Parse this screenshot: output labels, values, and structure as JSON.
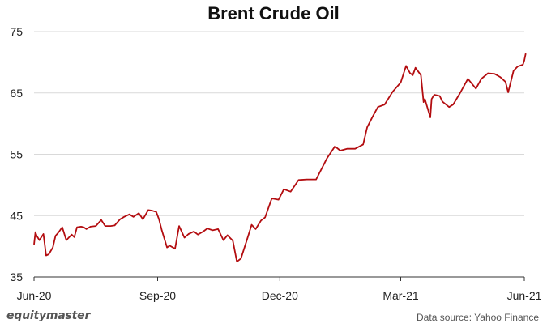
{
  "chart_data": {
    "type": "line",
    "title": "Brent Crude Oil",
    "xlabel": "",
    "ylabel": "",
    "x_ticks": [
      "Jun-20",
      "Sep-20",
      "Dec-20",
      "Mar-21",
      "Jun-21"
    ],
    "y_ticks": [
      35,
      45,
      55,
      65,
      75
    ],
    "ylim": [
      35,
      75
    ],
    "grid": "horizontal",
    "colors": {
      "line": "#b30d10",
      "grid": "#d9d9d9",
      "axis": "#333333"
    },
    "series": [
      {
        "name": "",
        "x": [
          "2020-06-01",
          "2020-06-02",
          "2020-06-03",
          "2020-06-05",
          "2020-06-08",
          "2020-06-10",
          "2020-06-12",
          "2020-06-15",
          "2020-06-17",
          "2020-06-19",
          "2020-06-22",
          "2020-06-25",
          "2020-06-29",
          "2020-07-01",
          "2020-07-03",
          "2020-07-06",
          "2020-07-08",
          "2020-07-10",
          "2020-07-13",
          "2020-07-17",
          "2020-07-21",
          "2020-07-24",
          "2020-07-28",
          "2020-07-31",
          "2020-08-04",
          "2020-08-07",
          "2020-08-11",
          "2020-08-14",
          "2020-08-18",
          "2020-08-21",
          "2020-08-25",
          "2020-08-28",
          "2020-08-31",
          "2020-09-02",
          "2020-09-04",
          "2020-09-08",
          "2020-09-10",
          "2020-09-14",
          "2020-09-17",
          "2020-09-21",
          "2020-09-24",
          "2020-09-28",
          "2020-10-01",
          "2020-10-05",
          "2020-10-08",
          "2020-10-12",
          "2020-10-16",
          "2020-10-20",
          "2020-10-23",
          "2020-10-27",
          "2020-10-30",
          "2020-11-02",
          "2020-11-06",
          "2020-11-10",
          "2020-11-13",
          "2020-11-17",
          "2020-11-20",
          "2020-11-25",
          "2020-11-30",
          "2020-12-04",
          "2020-12-09",
          "2020-12-15",
          "2020-12-21",
          "2020-12-28",
          "2021-01-05",
          "2021-01-11",
          "2021-01-15",
          "2021-01-20",
          "2021-01-26",
          "2021-02-01",
          "2021-02-04",
          "2021-02-08",
          "2021-02-12",
          "2021-02-17",
          "2021-02-23",
          "2021-03-01",
          "2021-03-05",
          "2021-03-08",
          "2021-03-10",
          "2021-03-12",
          "2021-03-16",
          "2021-03-18",
          "2021-03-19",
          "2021-03-23",
          "2021-03-24",
          "2021-03-26",
          "2021-03-30",
          "2021-04-01",
          "2021-04-06",
          "2021-04-09",
          "2021-04-14",
          "2021-04-20",
          "2021-04-26",
          "2021-04-30",
          "2021-05-05",
          "2021-05-10",
          "2021-05-14",
          "2021-05-18",
          "2021-05-20",
          "2021-05-24",
          "2021-05-27",
          "2021-05-31",
          "2021-06-01",
          "2021-06-02"
        ],
        "values": [
          40.3,
          42.3,
          41.7,
          41.0,
          42.0,
          38.5,
          38.7,
          39.8,
          41.7,
          42.2,
          43.1,
          41.0,
          41.9,
          41.5,
          43.1,
          43.2,
          43.1,
          42.8,
          43.2,
          43.3,
          44.3,
          43.3,
          43.3,
          43.4,
          44.4,
          44.8,
          45.2,
          44.8,
          45.4,
          44.4,
          45.9,
          45.8,
          45.6,
          44.4,
          42.7,
          39.8,
          40.1,
          39.6,
          43.3,
          41.4,
          42.0,
          42.4,
          41.9,
          42.4,
          42.9,
          42.6,
          42.8,
          41.0,
          41.8,
          40.9,
          37.5,
          38.0,
          40.7,
          43.5,
          42.8,
          44.2,
          44.7,
          47.8,
          47.6,
          49.3,
          48.9,
          50.8,
          50.9,
          50.9,
          54.3,
          56.3,
          55.6,
          55.9,
          55.9,
          56.6,
          59.4,
          61.1,
          62.7,
          63.1,
          65.2,
          66.7,
          69.4,
          68.2,
          67.9,
          69.1,
          67.9,
          63.5,
          64.0,
          61.0,
          64.0,
          64.7,
          64.5,
          63.6,
          62.7,
          63.1,
          64.9,
          67.3,
          65.7,
          67.3,
          68.2,
          68.1,
          67.6,
          66.8,
          65.1,
          68.6,
          69.3,
          69.6,
          70.3,
          71.4
        ]
      }
    ]
  },
  "footer": {
    "brand": "equitymaster",
    "source": "Data source: Yahoo Finance"
  }
}
